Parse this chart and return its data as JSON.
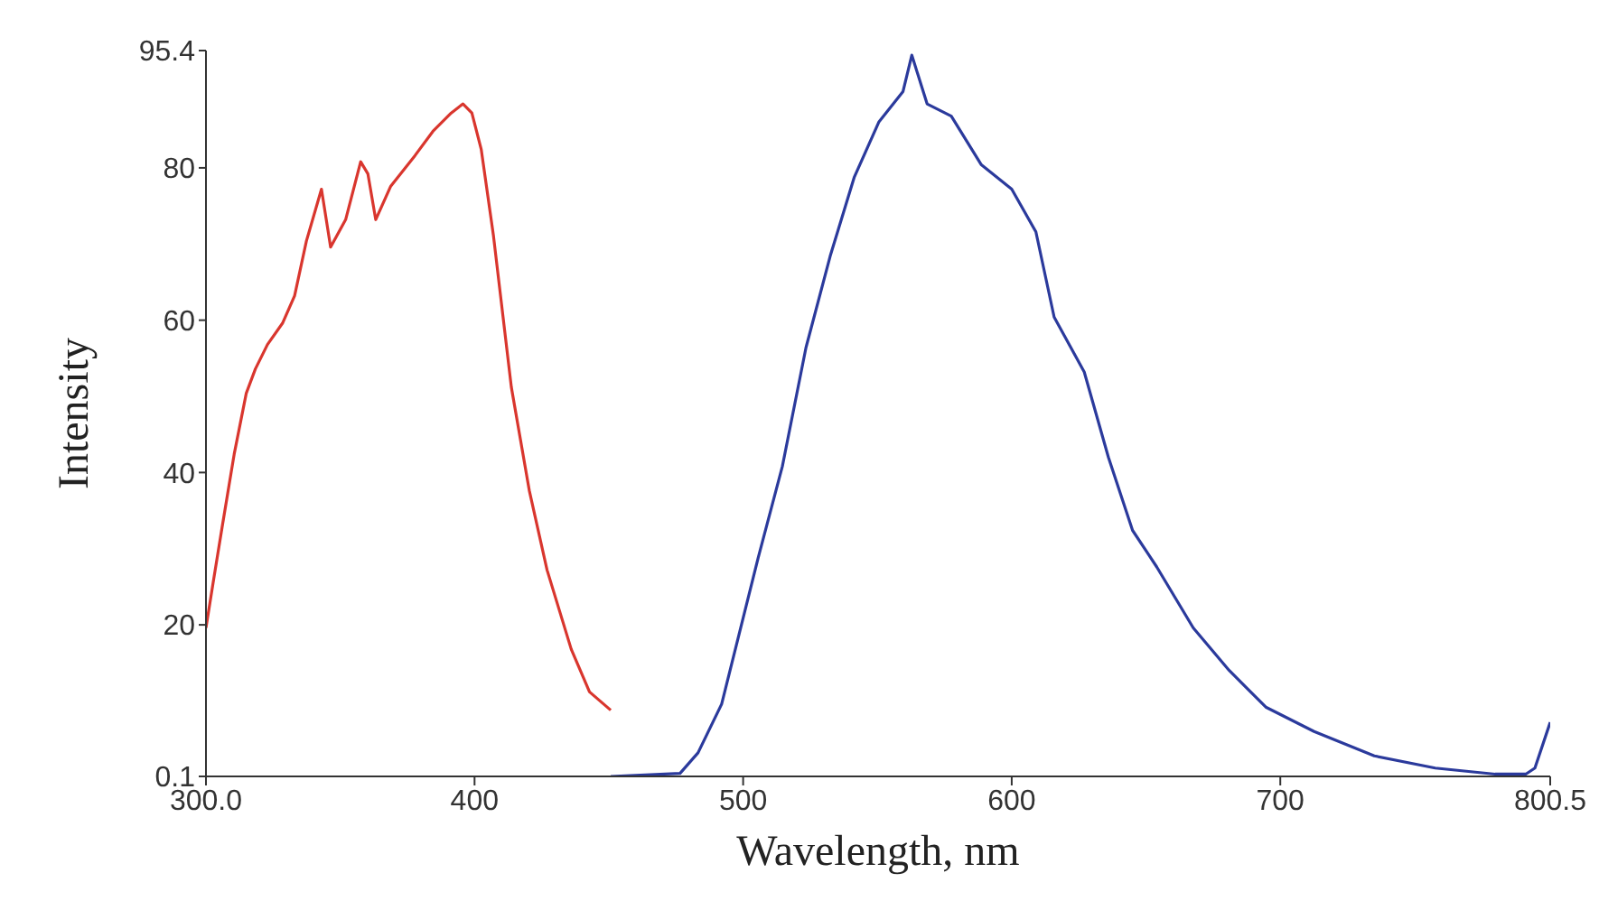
{
  "chart_data": {
    "type": "line",
    "xlabel": "Wavelength, nm",
    "ylabel": "Intensity",
    "xlim": [
      300,
      800.5
    ],
    "ylim": [
      0.1,
      95.4
    ],
    "xticks": [
      {
        "value": 300,
        "label": "300.0"
      },
      400,
      500,
      600,
      700,
      800.5
    ],
    "yticks": [
      0.1,
      20,
      40,
      60,
      80,
      95.4
    ],
    "grid": false,
    "legend": false,
    "marker": "none",
    "line_style": "solid",
    "series": [
      {
        "color": "#d9362e",
        "x": [
          300,
          302.7,
          306,
          310.5,
          315,
          318.4,
          322.9,
          328.5,
          333,
          337.4,
          343,
          346.4,
          352,
          357.6,
          360.3,
          363.2,
          368.8,
          377.8,
          384.5,
          391.3,
          395.7,
          399,
          402.5,
          407,
          413.7,
          420.4,
          427,
          436,
          442.8,
          450.7
        ],
        "values": [
          19.6,
          25.6,
          32.8,
          42.4,
          50.4,
          53.6,
          56.8,
          59.6,
          63.2,
          70.4,
          77.2,
          69.6,
          73.2,
          80.8,
          79.2,
          73.2,
          77.6,
          81.6,
          84.8,
          87.2,
          88.4,
          87.2,
          82.4,
          71.2,
          51.2,
          37.6,
          27.2,
          16.8,
          11.2,
          8.8
        ]
      },
      {
        "color": "#2b3a9c",
        "x": [
          450.7,
          476.5,
          483.2,
          492,
          505.6,
          514.6,
          523.4,
          532.4,
          541.4,
          550.5,
          559.5,
          562.8,
          568.5,
          577.5,
          588.7,
          600,
          609,
          615.8,
          627,
          636,
          645,
          654,
          667.6,
          681,
          694.6,
          712.6,
          735,
          757.7,
          780,
          791.4,
          794.8,
          800.5
        ],
        "values": [
          0.1,
          0.5,
          3.2,
          9.6,
          28.8,
          40.8,
          56.4,
          68.4,
          78.8,
          86,
          90,
          94.8,
          88.4,
          86.8,
          80.4,
          77.2,
          71.6,
          60.4,
          53.2,
          42,
          32.4,
          27.6,
          19.6,
          14,
          9.2,
          6,
          2.8,
          1.2,
          0.4,
          0.4,
          1.2,
          7.2
        ]
      }
    ]
  }
}
